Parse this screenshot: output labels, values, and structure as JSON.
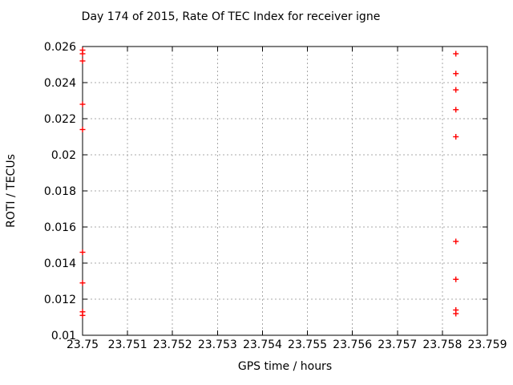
{
  "chart_data": {
    "type": "scatter",
    "title": "Day 174 of 2015, Rate Of TEC Index for receiver igne",
    "xlabel": "GPS time / hours",
    "ylabel": "ROTI / TECUs",
    "xlim": [
      23.75,
      23.759
    ],
    "ylim": [
      0.01,
      0.026
    ],
    "grid": true,
    "legend": "none",
    "marker_color": "#ff0000",
    "xticks": [
      {
        "v": 23.75,
        "label": "23.75"
      },
      {
        "v": 23.751,
        "label": "23.751"
      },
      {
        "v": 23.752,
        "label": "23.752"
      },
      {
        "v": 23.753,
        "label": "23.753"
      },
      {
        "v": 23.754,
        "label": "23.754"
      },
      {
        "v": 23.755,
        "label": "23.755"
      },
      {
        "v": 23.756,
        "label": "23.756"
      },
      {
        "v": 23.757,
        "label": "23.757"
      },
      {
        "v": 23.758,
        "label": "23.758"
      },
      {
        "v": 23.759,
        "label": "23.759"
      }
    ],
    "yticks": [
      {
        "v": 0.01,
        "label": "0.01"
      },
      {
        "v": 0.012,
        "label": "0.012"
      },
      {
        "v": 0.014,
        "label": "0.014"
      },
      {
        "v": 0.016,
        "label": "0.016"
      },
      {
        "v": 0.018,
        "label": "0.018"
      },
      {
        "v": 0.02,
        "label": "0.02"
      },
      {
        "v": 0.022,
        "label": "0.022"
      },
      {
        "v": 0.024,
        "label": "0.024"
      },
      {
        "v": 0.026,
        "label": "0.026"
      }
    ],
    "series": [
      {
        "name": "ROTI",
        "marker": "plus",
        "color": "#ff0000",
        "points": [
          [
            23.75,
            0.0258
          ],
          [
            23.75,
            0.0256
          ],
          [
            23.75,
            0.0252
          ],
          [
            23.75,
            0.0228
          ],
          [
            23.75,
            0.0214
          ],
          [
            23.75,
            0.0146
          ],
          [
            23.75,
            0.0129
          ],
          [
            23.75,
            0.0113
          ],
          [
            23.75,
            0.0111
          ],
          [
            23.7583,
            0.0256
          ],
          [
            23.7583,
            0.0245
          ],
          [
            23.7583,
            0.0236
          ],
          [
            23.7583,
            0.0225
          ],
          [
            23.7583,
            0.021
          ],
          [
            23.7583,
            0.0152
          ],
          [
            23.7583,
            0.0131
          ],
          [
            23.7583,
            0.0114
          ],
          [
            23.7583,
            0.0112
          ]
        ]
      }
    ]
  }
}
